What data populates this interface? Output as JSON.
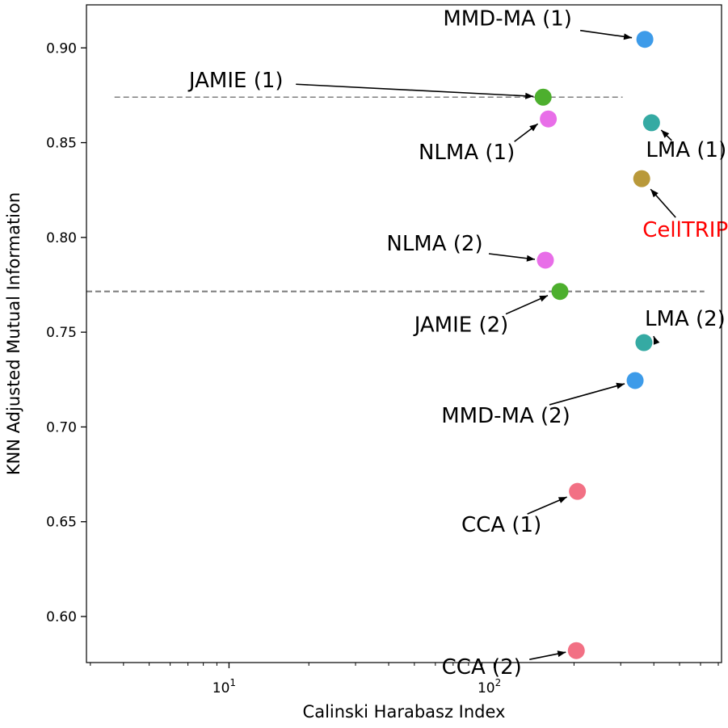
{
  "chart_data": {
    "type": "scatter",
    "xlabel": "Calinski Harabasz Index",
    "ylabel": "KNN Adjusted Mutual Information",
    "xscale": "log",
    "xlim": [
      2.9,
      720
    ],
    "ylim": [
      0.5757,
      0.9227
    ],
    "x_ticks": [
      {
        "value": 10,
        "base": "10",
        "exp": "1"
      },
      {
        "value": 100,
        "base": "10",
        "exp": "2"
      }
    ],
    "y_ticks": [
      {
        "value": 0.6,
        "label": "0.60"
      },
      {
        "value": 0.65,
        "label": "0.65"
      },
      {
        "value": 0.7,
        "label": "0.70"
      },
      {
        "value": 0.75,
        "label": "0.75"
      },
      {
        "value": 0.8,
        "label": "0.80"
      },
      {
        "value": 0.85,
        "label": "0.85"
      },
      {
        "value": 0.9,
        "label": "0.90"
      }
    ],
    "grid": false,
    "legend": "none",
    "reference_lines": [
      {
        "y": 0.874,
        "x_start": 3.7,
        "x_end": 305,
        "style": "dashed",
        "width": "thin"
      },
      {
        "y": 0.7715,
        "x_start": 2.9,
        "x_end": 620,
        "style": "dashed",
        "width": "thick"
      }
    ],
    "points": [
      {
        "label": "MMD-MA (1)",
        "x": 370,
        "y": 0.9045,
        "color": "#3d9be9",
        "label_color": "#000000"
      },
      {
        "label": "JAMIE (1)",
        "x": 153,
        "y": 0.874,
        "color": "#4daf2e",
        "label_color": "#000000"
      },
      {
        "label": "NLMA (1)",
        "x": 160,
        "y": 0.8625,
        "color": "#e86ee8",
        "label_color": "#000000"
      },
      {
        "label": "LMA (1)",
        "x": 392,
        "y": 0.8605,
        "color": "#35aaa3",
        "label_color": "#000000"
      },
      {
        "label": "CellTRIP",
        "x": 360,
        "y": 0.831,
        "color": "#b9993a",
        "label_color": "#ff0000"
      },
      {
        "label": "NLMA (2)",
        "x": 156,
        "y": 0.788,
        "color": "#e86ee8",
        "label_color": "#000000"
      },
      {
        "label": "JAMIE (2)",
        "x": 177,
        "y": 0.7715,
        "color": "#4daf2e",
        "label_color": "#000000"
      },
      {
        "label": "LMA (2)",
        "x": 367,
        "y": 0.7445,
        "color": "#35aaa3",
        "label_color": "#000000"
      },
      {
        "label": "MMD-MA (2)",
        "x": 340,
        "y": 0.7245,
        "color": "#3d9be9",
        "label_color": "#000000"
      },
      {
        "label": "CCA (1)",
        "x": 206,
        "y": 0.666,
        "color": "#f27084",
        "label_color": "#000000"
      },
      {
        "label": "CCA (2)",
        "x": 204,
        "y": 0.582,
        "color": "#f27084",
        "label_color": "#000000"
      }
    ]
  }
}
